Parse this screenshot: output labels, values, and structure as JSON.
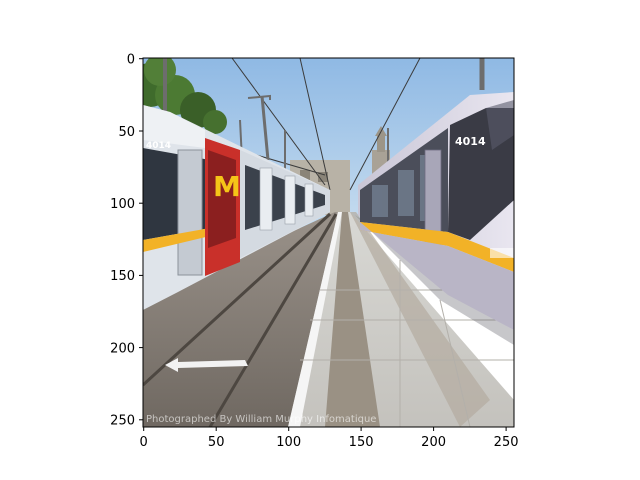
{
  "image": {
    "description_free": true,
    "watermark": "Photographed By William Murphy Infomatique",
    "tram_left_number": "4014",
    "tram_right_number": "4014",
    "colors": {
      "sky": "#9fc3e6",
      "tram_body": "#dfe4ea",
      "tram_yellow": "#f2b227",
      "ad_red": "#c9302a",
      "platform": "#cfcfcf",
      "track_bed": "#7b746c",
      "foliage": "#3f6b2c"
    }
  },
  "axes": {
    "x_ticks": [
      "0",
      "50",
      "100",
      "150",
      "200",
      "250"
    ],
    "y_ticks": [
      "0",
      "50",
      "100",
      "150",
      "200",
      "250"
    ]
  }
}
